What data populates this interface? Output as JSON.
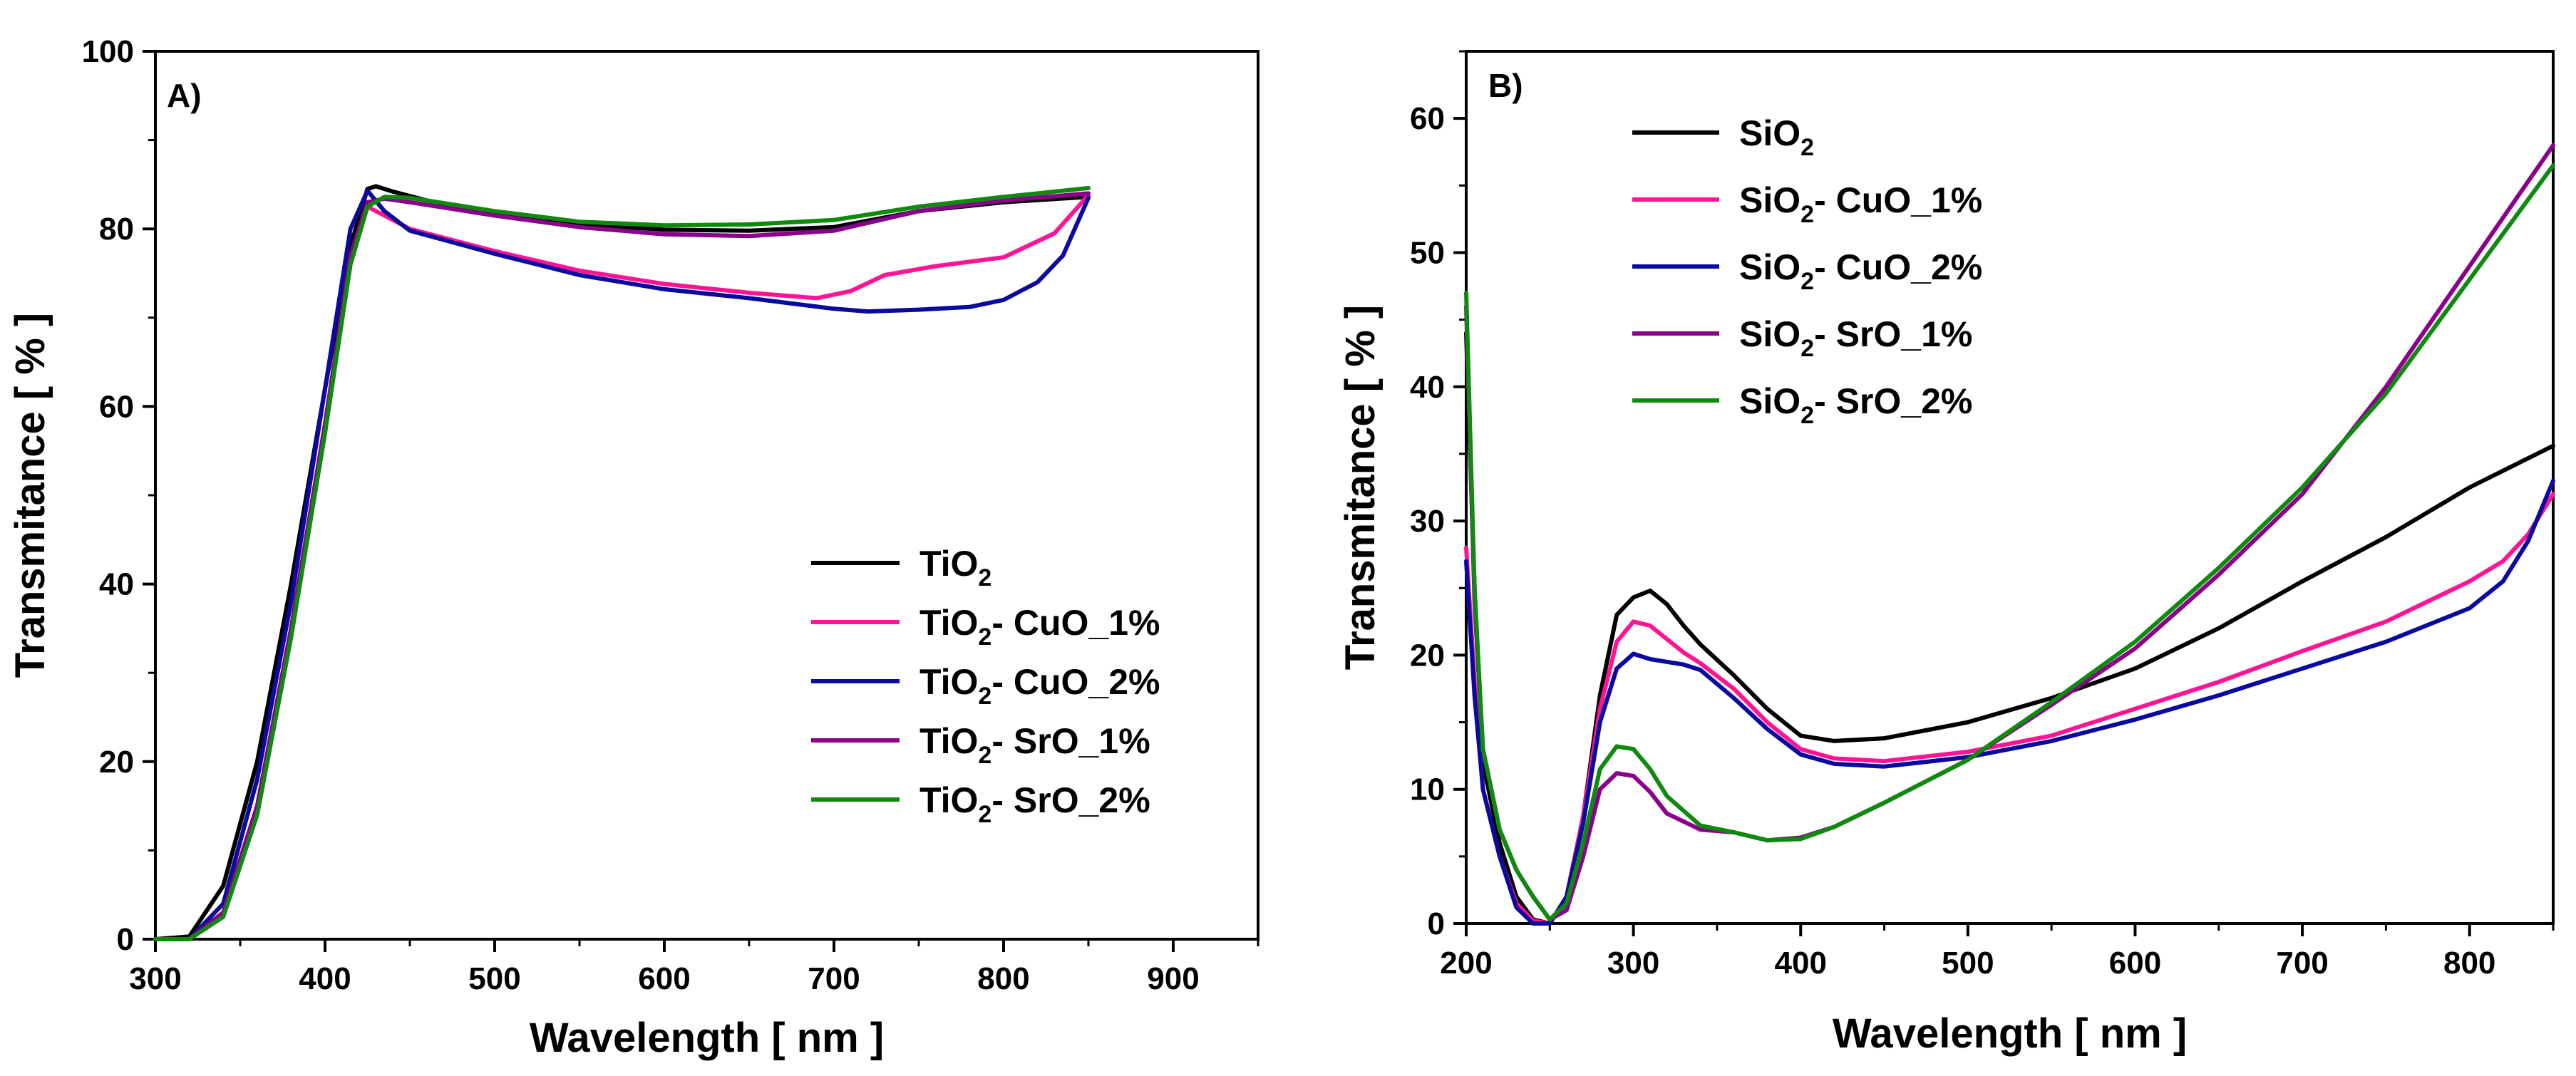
{
  "chart_data": [
    {
      "type": "line",
      "panel_label": "A)",
      "xlabel": "Wavelength [ nm ]",
      "ylabel": "Transmitance [ % ]",
      "xlim": [
        300,
        950
      ],
      "ylim": [
        0,
        100
      ],
      "xticks": [
        300,
        400,
        500,
        600,
        700,
        800,
        900
      ],
      "yticks": [
        0,
        20,
        40,
        60,
        80,
        100
      ],
      "legend_position": "center-right",
      "series": [
        {
          "name": "TiO2",
          "name_main": "TiO",
          "name_sub": "2",
          "name_rest": "",
          "color": "#000000",
          "x": [
            300,
            320,
            340,
            360,
            380,
            400,
            415,
            425,
            430,
            440,
            460,
            500,
            550,
            600,
            650,
            700,
            750,
            800,
            850
          ],
          "y": [
            0,
            0.3,
            6,
            20,
            40,
            62,
            78,
            84.5,
            84.8,
            84.2,
            83.2,
            81.8,
            80.6,
            79.9,
            79.8,
            80.2,
            82,
            83,
            83.6
          ]
        },
        {
          "name": "TiO2- CuO_1%",
          "name_main": "TiO",
          "name_sub": "2",
          "name_rest": "- CuO_1%",
          "color": "#ff1493",
          "x": [
            300,
            320,
            340,
            360,
            380,
            400,
            415,
            425,
            435,
            450,
            500,
            550,
            600,
            650,
            690,
            710,
            730,
            760,
            800,
            830,
            850
          ],
          "y": [
            0,
            0,
            3,
            15,
            35,
            58,
            76,
            82.5,
            81.5,
            80,
            77.5,
            75.3,
            73.8,
            72.8,
            72.2,
            73,
            74.8,
            75.8,
            76.8,
            79.5,
            83.8
          ]
        },
        {
          "name": "TiO2- CuO_2%",
          "name_main": "TiO",
          "name_sub": "2",
          "name_rest": "- CuO_2%",
          "color": "#0a0aa0",
          "x": [
            300,
            320,
            340,
            360,
            380,
            400,
            415,
            425,
            435,
            450,
            500,
            550,
            600,
            650,
            700,
            720,
            750,
            780,
            800,
            820,
            835,
            850
          ],
          "y": [
            0,
            0,
            4,
            18,
            38,
            62,
            80,
            84.3,
            82,
            79.8,
            77.2,
            74.8,
            73.2,
            72.2,
            71,
            70.7,
            70.9,
            71.2,
            72,
            74,
            77,
            83.5
          ]
        },
        {
          "name": "TiO2- SrO_1%",
          "name_main": "TiO",
          "name_sub": "2",
          "name_rest": "- SrO_1%",
          "color": "#8b008b",
          "x": [
            300,
            320,
            340,
            360,
            380,
            400,
            415,
            425,
            435,
            450,
            500,
            550,
            600,
            650,
            700,
            750,
            800,
            850
          ],
          "y": [
            0,
            0,
            3,
            15,
            35,
            58,
            77,
            83,
            83.4,
            83,
            81.5,
            80.2,
            79.4,
            79.2,
            79.8,
            82,
            83.2,
            84
          ]
        },
        {
          "name": "TiO2- SrO_2%",
          "name_main": "TiO",
          "name_sub": "2",
          "name_rest": "- SrO_2%",
          "color": "#0f8a0f",
          "x": [
            300,
            320,
            340,
            360,
            380,
            400,
            415,
            425,
            435,
            450,
            500,
            550,
            600,
            650,
            700,
            750,
            800,
            850
          ],
          "y": [
            0,
            0,
            2.5,
            14,
            34,
            57,
            76,
            82.5,
            83.6,
            83.5,
            82,
            80.8,
            80.4,
            80.5,
            81,
            82.5,
            83.6,
            84.6
          ]
        }
      ]
    },
    {
      "type": "line",
      "panel_label": "B)",
      "xlabel": "Wavelength [ nm ]",
      "ylabel": "Transmitance [ % ]",
      "xlim": [
        200,
        850
      ],
      "ylim": [
        0,
        65
      ],
      "xticks": [
        200,
        300,
        400,
        500,
        600,
        700,
        800
      ],
      "yticks": [
        0,
        10,
        20,
        30,
        40,
        50,
        60
      ],
      "legend_position": "top-left",
      "series": [
        {
          "name": "SiO2",
          "name_main": "SiO",
          "name_sub": "2",
          "name_rest": "",
          "color": "#000000",
          "x": [
            200,
            205,
            210,
            220,
            230,
            240,
            250,
            260,
            270,
            280,
            290,
            300,
            310,
            320,
            330,
            340,
            360,
            380,
            400,
            420,
            450,
            500,
            550,
            600,
            650,
            700,
            750,
            800,
            850
          ],
          "y": [
            44,
            25,
            12,
            6,
            2,
            0.3,
            0,
            2,
            8,
            17,
            23,
            24.3,
            24.8,
            23.8,
            22.2,
            20.8,
            18.5,
            16,
            14,
            13.6,
            13.8,
            15,
            16.8,
            19,
            22,
            25.5,
            28.8,
            32.5,
            35.6
          ]
        },
        {
          "name": "SiO2- CuO_1%",
          "name_main": "SiO",
          "name_sub": "2",
          "name_rest": "- CuO_1%",
          "color": "#ff1493",
          "x": [
            200,
            205,
            210,
            220,
            230,
            240,
            250,
            260,
            270,
            280,
            290,
            300,
            310,
            320,
            330,
            340,
            360,
            380,
            400,
            420,
            450,
            500,
            550,
            600,
            650,
            700,
            750,
            800,
            820,
            835,
            850
          ],
          "y": [
            28,
            18,
            10,
            5,
            1.5,
            0.2,
            0,
            2,
            8,
            16,
            21,
            22.5,
            22.2,
            21.2,
            20.2,
            19.4,
            17.5,
            15,
            13,
            12.3,
            12.1,
            12.8,
            14,
            16,
            18,
            20.3,
            22.5,
            25.5,
            27,
            29,
            32
          ]
        },
        {
          "name": "SiO2- CuO_2%",
          "name_main": "SiO",
          "name_sub": "2",
          "name_rest": "- CuO_2%",
          "color": "#0a0aa0",
          "x": [
            200,
            205,
            210,
            220,
            230,
            240,
            250,
            260,
            270,
            280,
            290,
            300,
            310,
            320,
            330,
            340,
            360,
            380,
            400,
            420,
            450,
            500,
            550,
            600,
            650,
            700,
            750,
            800,
            820,
            835,
            850
          ],
          "y": [
            27,
            17,
            10,
            5,
            1.2,
            0,
            0,
            2,
            7.5,
            15,
            19,
            20.1,
            19.7,
            19.5,
            19.3,
            18.9,
            16.8,
            14.5,
            12.6,
            11.9,
            11.7,
            12.4,
            13.6,
            15.2,
            17,
            19,
            21,
            23.5,
            25.5,
            28.5,
            33
          ]
        },
        {
          "name": "SiO2- SrO_1%",
          "name_main": "SiO",
          "name_sub": "2",
          "name_rest": "- SrO_1%",
          "color": "#8b008b",
          "x": [
            200,
            205,
            210,
            220,
            230,
            240,
            250,
            260,
            270,
            280,
            290,
            300,
            310,
            320,
            340,
            360,
            380,
            400,
            420,
            450,
            500,
            550,
            600,
            650,
            700,
            750,
            800,
            850
          ],
          "y": [
            46,
            24,
            13,
            7,
            4,
            2,
            0.3,
            1,
            5,
            10,
            11.2,
            11,
            9.8,
            8.2,
            7,
            6.8,
            6.2,
            6.4,
            7.2,
            9,
            12.2,
            16.3,
            20.5,
            26,
            32,
            40,
            49,
            58
          ]
        },
        {
          "name": "SiO2- SrO_2%",
          "name_main": "SiO",
          "name_sub": "2",
          "name_rest": "- SrO_2%",
          "color": "#0f8a0f",
          "x": [
            200,
            205,
            210,
            220,
            230,
            240,
            250,
            260,
            270,
            280,
            290,
            300,
            310,
            320,
            340,
            360,
            380,
            400,
            420,
            450,
            500,
            550,
            600,
            650,
            700,
            750,
            800,
            850
          ],
          "y": [
            47,
            25,
            13,
            7,
            4,
            2,
            0.3,
            1.5,
            6,
            11.5,
            13.2,
            13,
            11.5,
            9.5,
            7.3,
            6.8,
            6.2,
            6.3,
            7.2,
            9,
            12.2,
            16.5,
            21,
            26.5,
            32.5,
            39.5,
            48,
            56.5
          ]
        }
      ]
    }
  ]
}
